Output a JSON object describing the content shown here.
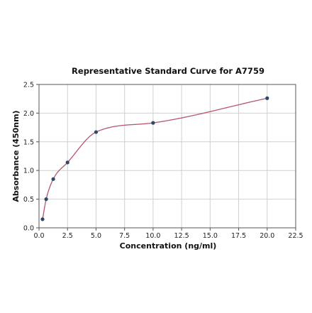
{
  "chart_data": {
    "type": "scatter",
    "title": "Representative Standard Curve for A7759",
    "xlabel": "Concentration (ng/ml)",
    "ylabel": "Absorbance (450nm)",
    "xlim": [
      0,
      22.5
    ],
    "ylim": [
      0,
      2.5
    ],
    "xticks": [
      "0.0",
      "2.5",
      "5.0",
      "7.5",
      "10.0",
      "12.5",
      "15.0",
      "17.5",
      "20.0",
      "22.5"
    ],
    "yticks": [
      "0.0",
      "0.5",
      "1.0",
      "1.5",
      "2.0",
      "2.5"
    ],
    "grid": true,
    "legend": "none",
    "series": [
      {
        "points": [
          {
            "x": 0.31,
            "y": 0.15
          },
          {
            "x": 0.63,
            "y": 0.5
          },
          {
            "x": 1.25,
            "y": 0.85
          },
          {
            "x": 2.5,
            "y": 1.14
          },
          {
            "x": 5.0,
            "y": 1.67
          },
          {
            "x": 10.0,
            "y": 1.83
          },
          {
            "x": 20.0,
            "y": 2.26
          }
        ],
        "marker_color": "#2e4a6b"
      }
    ],
    "fit_curve": {
      "type": "four-parameter logistic",
      "color": "#b5566b",
      "x_range": [
        0.31,
        20.0
      ]
    }
  }
}
